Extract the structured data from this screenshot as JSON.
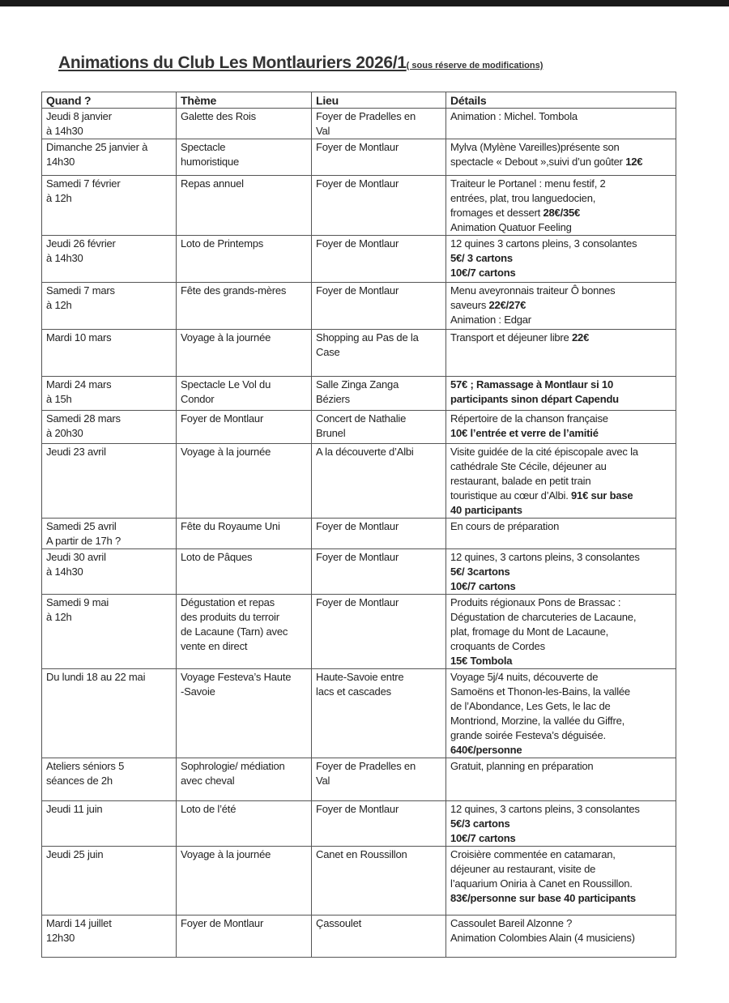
{
  "title": {
    "main": "Animations du Club Les Montlauriers 2026/1",
    "note": "( sous réserve de modifications)"
  },
  "headers": [
    "Quand ?",
    "Thème",
    "Lieu",
    "Détails"
  ],
  "rows": [
    {
      "quand": [
        "Jeudi 8 janvier",
        "à 14h30"
      ],
      "theme": [
        "Galette des Rois"
      ],
      "lieu": [
        "Foyer de Pradelles en",
        "Val"
      ],
      "details": [
        [
          {
            "t": "Animation : Michel. Tombola"
          }
        ]
      ]
    },
    {
      "quand": [
        "Dimanche 25 janvier à",
        "14h30"
      ],
      "theme": [
        "Spectacle",
        "humoristique"
      ],
      "lieu": [
        "Foyer de Montlaur"
      ],
      "details": [
        [
          {
            "t": "Mylva (Mylène Vareilles)présente son"
          }
        ],
        [
          {
            "t": "spectacle « Debout »,suivi d’un goûter "
          },
          {
            "t": "12€",
            "b": true
          }
        ]
      ]
    },
    {
      "quand": [
        "Samedi 7 février",
        "à 12h"
      ],
      "theme": [
        "Repas annuel"
      ],
      "lieu": [
        "Foyer de Montlaur"
      ],
      "details": [
        [
          {
            "t": "Traiteur le Portanel : menu festif, 2"
          }
        ],
        [
          {
            "t": "entrées, plat, trou languedocien,"
          }
        ],
        [
          {
            "t": "fromages et  dessert "
          },
          {
            "t": "28€/35€",
            "b": true
          }
        ],
        [
          {
            "t": "Animation Quatuor Feeling"
          }
        ]
      ]
    },
    {
      "quand": [
        "Jeudi 26 février",
        "à 14h30"
      ],
      "theme": [
        "Loto de Printemps"
      ],
      "lieu": [
        "Foyer de Montlaur"
      ],
      "details": [
        [
          {
            "t": "12 quines 3 cartons pleins, 3 consolantes"
          }
        ],
        [
          {
            "t": "5€/ 3 cartons",
            "b": true
          }
        ],
        [
          {
            "t": "10€/7 cartons",
            "b": true
          }
        ]
      ]
    },
    {
      "quand": [
        "Samedi 7 mars",
        "à 12h"
      ],
      "theme": [
        "Fête des grands-mères"
      ],
      "lieu": [
        "Foyer de Montlaur"
      ],
      "details": [
        [
          {
            "t": "Menu aveyronnais traiteur Ô bonnes"
          }
        ],
        [
          {
            "t": "saveurs "
          },
          {
            "t": "22€/27€",
            "b": true
          }
        ],
        [
          {
            "t": "Animation : Edgar"
          }
        ]
      ]
    },
    {
      "quand": [
        "Mardi 10 mars"
      ],
      "theme": [
        "Voyage à la journée"
      ],
      "lieu": [
        "Shopping au Pas de la",
        "Case"
      ],
      "details": [
        [
          {
            "t": "Transport et déjeuner libre "
          },
          {
            "t": "22€",
            "b": true
          }
        ]
      ]
    },
    {
      "quand": [
        "Mardi 24 mars",
        "à 15h"
      ],
      "theme": [
        "Spectacle Le Vol du",
        "Condor"
      ],
      "lieu": [
        "Salle Zinga Zanga",
        "Béziers"
      ],
      "details": [
        [
          {
            "t": " 57€ ; Ramassage à Montlaur si 10",
            "b": true
          }
        ],
        [
          {
            "t": "participants sinon départ Capendu",
            "b": true
          }
        ]
      ]
    },
    {
      "quand": [
        "Samedi 28 mars",
        "à 20h30"
      ],
      "theme": [
        "Foyer de Montlaur"
      ],
      "lieu": [
        "Concert de Nathalie",
        "Brunel"
      ],
      "details": [
        [
          {
            "t": "Répertoire de la chanson française"
          }
        ],
        [
          {
            "t": "10€ l’entrée et verre de l’amitié",
            "b": true
          }
        ]
      ]
    },
    {
      "quand": [
        "Jeudi 23 avril"
      ],
      "theme": [
        "Voyage à la journée"
      ],
      "lieu": [
        "A la découverte d’Albi"
      ],
      "details": [
        [
          {
            "t": "Visite guidée de la cité épiscopale avec la"
          }
        ],
        [
          {
            "t": "cathédrale Ste Cécile, déjeuner au"
          }
        ],
        [
          {
            "t": "restaurant, balade en petit train"
          }
        ],
        [
          {
            "t": "touristique au cœur d’Albi. "
          },
          {
            "t": "91€ sur base",
            "b": true
          }
        ],
        [
          {
            "t": "40 participants",
            "b": true
          }
        ]
      ]
    },
    {
      "quand": [
        "Samedi 25 avril",
        "A partir de 17h ?"
      ],
      "theme": [
        "Fête du Royaume Uni"
      ],
      "lieu": [
        "Foyer de Montlaur"
      ],
      "details": [
        [
          {
            "t": "En cours de préparation"
          }
        ]
      ]
    },
    {
      "quand": [
        "Jeudi 30 avril",
        "à 14h30"
      ],
      "theme": [
        "Loto de Pâques"
      ],
      "lieu": [
        "Foyer de Montlaur"
      ],
      "details": [
        [
          {
            "t": "12 quines, 3 cartons pleins, 3 consolantes"
          }
        ],
        [
          {
            "t": "5€/ 3cartons",
            "b": true
          }
        ],
        [
          {
            "t": "10€/7 cartons",
            "b": true
          }
        ]
      ]
    },
    {
      "quand": [
        "Samedi 9 mai",
        "à 12h"
      ],
      "theme": [
        "Dégustation et repas",
        "des produits du terroir",
        "de Lacaune (Tarn) avec",
        "vente en direct"
      ],
      "lieu": [
        "Foyer de Montlaur"
      ],
      "details": [
        [
          {
            "t": " Produits régionaux Pons de Brassac :"
          }
        ],
        [
          {
            "t": "Dégustation de charcuteries de Lacaune,"
          }
        ],
        [
          {
            "t": "plat, fromage du Mont de Lacaune,"
          }
        ],
        [
          {
            "t": "croquants de Cordes"
          }
        ],
        [
          {
            "t": "15€ Tombola",
            "b": true
          }
        ]
      ]
    },
    {
      "quand": [
        "Du lundi 18 au 22 mai"
      ],
      "theme": [
        "Voyage Festeva’s Haute",
        "-Savoie"
      ],
      "lieu": [
        "Haute-Savoie entre",
        "lacs et cascades"
      ],
      "details": [
        [
          {
            "t": "Voyage 5j/4 nuits, découverte de"
          }
        ],
        [
          {
            "t": "Samoëns et Thonon-les-Bains, la vallée"
          }
        ],
        [
          {
            "t": "de l’Abondance, Les Gets, le lac de"
          }
        ],
        [
          {
            "t": "Montriond, Morzine, la vallée du Giffre,"
          }
        ],
        [
          {
            "t": "grande soirée Festeva’s déguisée."
          }
        ],
        [
          {
            "t": "640€/personne",
            "b": true
          }
        ]
      ]
    },
    {
      "quand": [
        "Ateliers séniors 5",
        "séances de 2h"
      ],
      "theme": [
        "Sophrologie/ médiation",
        "avec cheval"
      ],
      "lieu": [
        "Foyer de Pradelles en",
        "Val"
      ],
      "details": [
        [
          {
            "t": "Gratuit, planning en préparation"
          }
        ]
      ]
    },
    {
      "quand": [
        "Jeudi 11 juin"
      ],
      "theme": [
        "Loto de l’été"
      ],
      "lieu": [
        "Foyer de Montlaur"
      ],
      "details": [
        [
          {
            "t": "12 quines, 3 cartons pleins, 3 consolantes"
          }
        ],
        [
          {
            "t": "5€/3 cartons",
            "b": true
          }
        ],
        [
          {
            "t": "10€/7 cartons",
            "b": true
          }
        ]
      ]
    },
    {
      "quand": [
        "Jeudi 25 juin"
      ],
      "theme": [
        "Voyage à la journée"
      ],
      "lieu": [
        "Canet en Roussillon"
      ],
      "details": [
        [
          {
            "t": "Croisière commentée en catamaran,"
          }
        ],
        [
          {
            "t": "déjeuner au restaurant, visite de"
          }
        ],
        [
          {
            "t": "l’aquarium Oniria à Canet en Roussillon."
          }
        ],
        [
          {
            "t": "83€/personne sur base 40 participants",
            "b": true
          }
        ]
      ]
    },
    {
      "quand": [
        "Mardi 14 juillet",
        "12h30"
      ],
      "theme": [
        "Foyer de Montlaur"
      ],
      "lieu": [
        "Çassoulet"
      ],
      "details": [
        [
          {
            "t": "Cassoulet Bareil Alzonne ?"
          }
        ],
        [
          {
            "t": "Animation Colombies Alain (4 musiciens)"
          }
        ]
      ]
    }
  ]
}
